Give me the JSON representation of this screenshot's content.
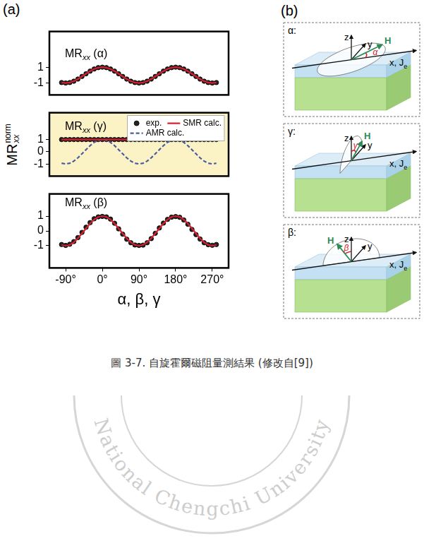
{
  "chart_data": [
    {
      "type": "line",
      "title": {
        "base": "MR",
        "sub": "xx",
        "suffix": " (α)"
      },
      "x": [
        -100,
        -90,
        -80,
        -70,
        -60,
        -50,
        -40,
        -30,
        -20,
        -10,
        0,
        10,
        20,
        30,
        40,
        50,
        60,
        70,
        80,
        90,
        100,
        110,
        120,
        130,
        140,
        150,
        160,
        170,
        180,
        190,
        200,
        210,
        220,
        230,
        240,
        250,
        260,
        270,
        280
      ],
      "series": [
        {
          "name": "exp.",
          "color": "#222222",
          "marker": "circle",
          "line_style": "none",
          "values": [
            -0.94,
            -1,
            -0.94,
            -0.77,
            -0.5,
            -0.17,
            0.17,
            0.5,
            0.77,
            0.94,
            1,
            0.94,
            0.77,
            0.5,
            0.17,
            -0.17,
            -0.5,
            -0.77,
            -0.94,
            -1,
            -0.94,
            -0.77,
            -0.5,
            -0.17,
            0.17,
            0.5,
            0.77,
            0.94,
            1,
            0.94,
            0.77,
            0.5,
            0.17,
            -0.17,
            -0.5,
            -0.77,
            -0.94,
            -1,
            -0.94
          ]
        },
        {
          "name": "SMR calc.",
          "color": "#d3202f",
          "marker": "none",
          "line_style": "solid",
          "values": [
            -0.94,
            -1,
            -0.94,
            -0.77,
            -0.5,
            -0.17,
            0.17,
            0.5,
            0.77,
            0.94,
            1,
            0.94,
            0.77,
            0.5,
            0.17,
            -0.17,
            -0.5,
            -0.77,
            -0.94,
            -1,
            -0.94,
            -0.77,
            -0.5,
            -0.17,
            0.17,
            0.5,
            0.77,
            0.94,
            1,
            0.94,
            0.77,
            0.5,
            0.17,
            -0.17,
            -0.5,
            -0.77,
            -0.94,
            -1,
            -0.94
          ]
        }
      ],
      "xlim": [
        -130,
        310
      ],
      "xticks": [
        {
          "value": -90,
          "label": "-90°"
        },
        {
          "value": 0,
          "label": "0°"
        },
        {
          "value": 90,
          "label": "90°"
        },
        {
          "value": 180,
          "label": "180°"
        },
        {
          "value": 270,
          "label": "270°"
        }
      ],
      "ylim": [
        -2.5,
        5.5
      ],
      "yticks": [
        -1,
        1
      ],
      "grid": false,
      "tick_labels": "y"
    },
    {
      "type": "line",
      "title": {
        "base": "MR",
        "sub": "xx",
        "suffix": " (γ)"
      },
      "x": [
        -100,
        -90,
        -80,
        -70,
        -60,
        -50,
        -40,
        -30,
        -20,
        -10,
        0,
        10,
        20,
        30,
        40,
        50,
        60,
        70,
        80,
        90,
        100,
        110,
        120,
        130,
        140,
        150,
        160,
        170,
        180,
        190,
        200,
        210,
        220,
        230,
        240,
        250,
        260,
        270,
        280
      ],
      "series": [
        {
          "name": "exp.",
          "color": "#222222",
          "marker": "circle",
          "line_style": "none",
          "values": [
            1,
            1,
            1,
            1,
            1,
            1,
            1,
            1,
            1,
            1,
            1,
            1,
            1,
            1,
            1,
            1,
            1,
            1,
            1,
            1,
            1,
            1,
            1,
            1,
            1,
            1,
            1,
            1,
            1,
            1,
            1,
            1,
            1,
            1,
            1,
            1,
            1,
            1,
            1
          ]
        },
        {
          "name": "SMR calc.",
          "color": "#d3202f",
          "marker": "none",
          "line_style": "solid",
          "values": [
            1,
            1,
            1,
            1,
            1,
            1,
            1,
            1,
            1,
            1,
            1,
            1,
            1,
            1,
            1,
            1,
            1,
            1,
            1,
            1,
            1,
            1,
            1,
            1,
            1,
            1,
            1,
            1,
            1,
            1,
            1,
            1,
            1,
            1,
            1,
            1,
            1,
            1,
            1
          ]
        },
        {
          "name": "AMR calc.",
          "color": "#4a5c9c",
          "marker": "none",
          "line_style": "dashed",
          "values": [
            -0.94,
            -1,
            -0.94,
            -0.77,
            -0.5,
            -0.17,
            0.17,
            0.5,
            0.77,
            0.94,
            1,
            0.94,
            0.77,
            0.5,
            0.17,
            -0.17,
            -0.5,
            -0.77,
            -0.94,
            -1,
            -0.94,
            -0.77,
            -0.5,
            -0.17,
            0.17,
            0.5,
            0.77,
            0.94,
            1,
            0.94,
            0.77,
            0.5,
            0.17,
            -0.17,
            -0.5,
            -0.77,
            -0.94,
            -1,
            -0.94
          ]
        }
      ],
      "xlim": [
        -130,
        310
      ],
      "xticks": [
        {
          "value": -90,
          "label": "-90°"
        },
        {
          "value": 0,
          "label": "0°"
        },
        {
          "value": 90,
          "label": "90°"
        },
        {
          "value": 180,
          "label": "180°"
        },
        {
          "value": 270,
          "label": "270°"
        }
      ],
      "ylim": [
        -2,
        3.2
      ],
      "yticks": [
        -1,
        0,
        1
      ],
      "grid": false,
      "legend": "upper right",
      "tick_labels": "y"
    },
    {
      "type": "line",
      "title": {
        "base": "MR",
        "sub": "xx",
        "suffix": " (β)"
      },
      "x_label": "α, β, γ",
      "x": [
        -100,
        -90,
        -80,
        -70,
        -60,
        -50,
        -40,
        -30,
        -20,
        -10,
        0,
        10,
        20,
        30,
        40,
        50,
        60,
        70,
        80,
        90,
        100,
        110,
        120,
        130,
        140,
        150,
        160,
        170,
        180,
        190,
        200,
        210,
        220,
        230,
        240,
        250,
        260,
        270,
        280
      ],
      "series": [
        {
          "name": "exp.",
          "color": "#222222",
          "marker": "circle",
          "line_style": "none",
          "values": [
            -0.92,
            -0.98,
            -0.9,
            -0.72,
            -0.45,
            -0.1,
            0.25,
            0.56,
            0.82,
            0.95,
            0.98,
            0.95,
            0.8,
            0.52,
            0.14,
            -0.22,
            -0.56,
            -0.8,
            -0.95,
            -0.98,
            -0.96,
            -0.8,
            -0.52,
            -0.16,
            0.2,
            0.53,
            0.78,
            0.93,
            0.97,
            0.92,
            0.74,
            0.45,
            0.1,
            -0.25,
            -0.55,
            -0.8,
            -0.93,
            -0.97,
            -0.92
          ]
        },
        {
          "name": "SMR calc.",
          "color": "#d3202f",
          "marker": "none",
          "line_style": "solid",
          "values": [
            -0.94,
            -1,
            -0.94,
            -0.77,
            -0.5,
            -0.17,
            0.17,
            0.5,
            0.77,
            0.94,
            1,
            0.94,
            0.77,
            0.5,
            0.17,
            -0.17,
            -0.5,
            -0.77,
            -0.94,
            -1,
            -0.94,
            -0.77,
            -0.5,
            -0.17,
            0.17,
            0.5,
            0.77,
            0.94,
            1,
            0.94,
            0.77,
            0.5,
            0.17,
            -0.17,
            -0.5,
            -0.77,
            -0.94,
            -1,
            -0.94
          ]
        }
      ],
      "xlim": [
        -130,
        310
      ],
      "xticks": [
        {
          "value": -90,
          "label": "-90°"
        },
        {
          "value": 0,
          "label": "0°"
        },
        {
          "value": 90,
          "label": "90°"
        },
        {
          "value": 180,
          "label": "180°"
        },
        {
          "value": 270,
          "label": "270°"
        }
      ],
      "ylim": [
        -2.5,
        2.5
      ],
      "yticks": [
        -1,
        0,
        1
      ],
      "grid": false
    }
  ],
  "figure": {
    "panel_a_label": "(a)",
    "panel_b_label": "(b)",
    "y_axis_label": {
      "base": "MR",
      "sub": "xx",
      "sup": "norm"
    },
    "diagrams": [
      {
        "label": "α:",
        "z": "z",
        "y": "y",
        "x": "x, J",
        "x_sub": "e",
        "field": "H",
        "angle": "α"
      },
      {
        "label": "γ:",
        "z": "z",
        "y": "y",
        "x": "x, J",
        "x_sub": "e",
        "field": "H",
        "angle": "γ"
      },
      {
        "label": "β:",
        "z": "z",
        "y": "y",
        "x": "x, J",
        "x_sub": "e",
        "field": "H",
        "angle": "β"
      }
    ],
    "caption": "圖 3-7. 自旋霍爾磁阻量測結果 (修改自[9])",
    "watermark": "National Chengchi University"
  }
}
